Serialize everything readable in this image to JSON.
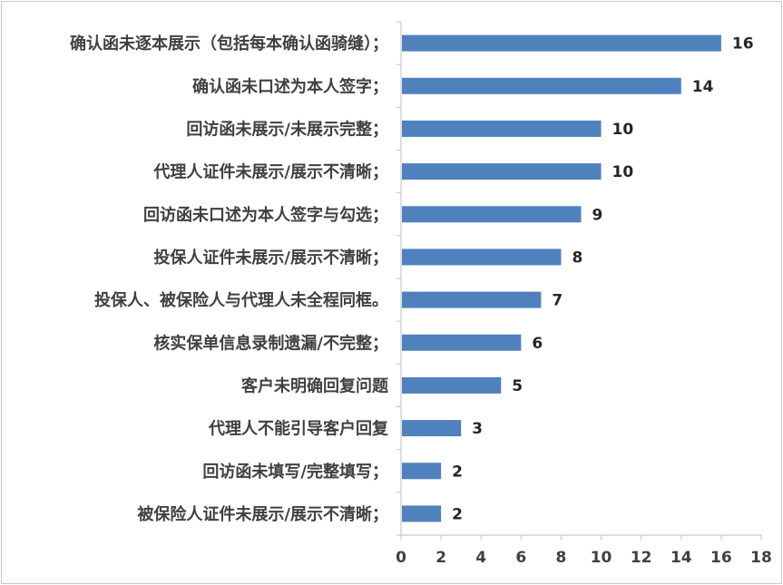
{
  "chart_data": {
    "type": "bar",
    "orientation": "horizontal",
    "title": "",
    "xlabel": "",
    "ylabel": "",
    "categories": [
      "确认函未逐本展示（包括每本确认函骑缝）；",
      "确认函未口述为本人签字；",
      "回访函未展示/未展示完整；",
      "代理人证件未展示/展示不清晰；",
      "回访函未口述为本人签字与勾选；",
      "投保人证件未展示/展示不清晰；",
      "投保人、被保险人与代理人未全程同框。",
      "核实保单信息录制遗漏/不完整；",
      "客户未明确回复问题",
      "代理人不能引导客户回复",
      "回访函未填写/完整填写；",
      "被保险人证件未展示/展示不清晰；"
    ],
    "values": [
      16,
      14,
      10,
      10,
      9,
      8,
      7,
      6,
      5,
      3,
      2,
      2
    ],
    "xlim": [
      0,
      18
    ],
    "xticks": [
      0,
      2,
      4,
      6,
      8,
      10,
      12,
      14,
      16,
      18
    ],
    "grid": false,
    "legend": "none",
    "bar_color": "#4f81bd",
    "axis_color": "#bfbfbf"
  }
}
